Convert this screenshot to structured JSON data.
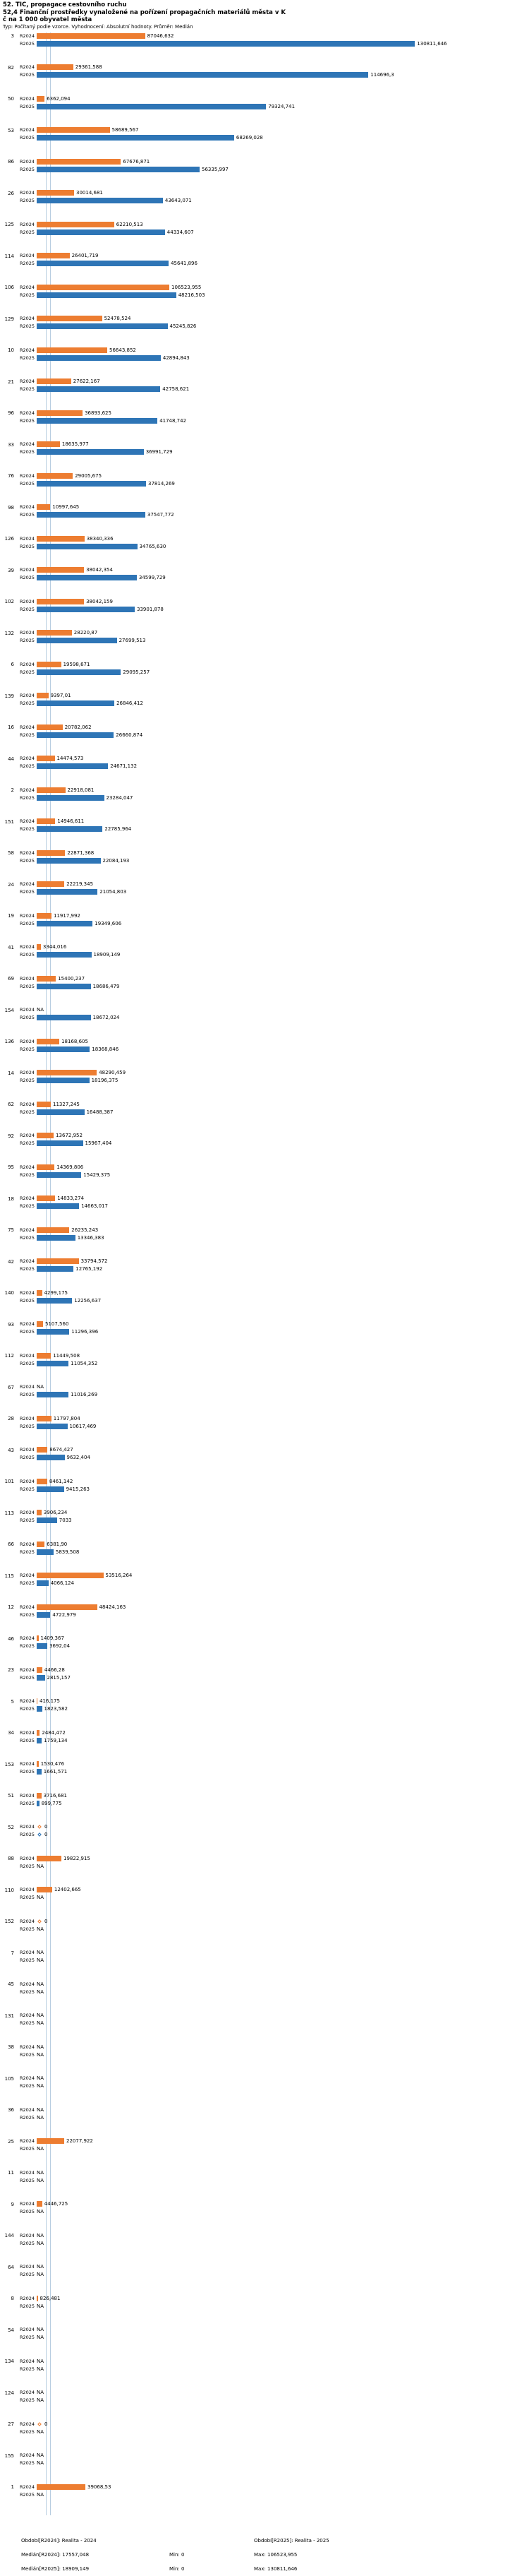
{
  "header": {
    "title": "52. TIC, propagace cestovního ruchu",
    "subtitle1": "52,4 Finanční prostředky vynaložené na pořízení propagačních materiálů města v K",
    "subtitle2": "č na 1 000 obyvatel města",
    "meta": "Typ: Počítaný podle vzorce. Vyhodnocení: Absolutní hodnoty. Průměr: Medián"
  },
  "chart_data": {
    "type": "bar",
    "orientation": "horizontal",
    "title": "52,4 Finanční prostředky vynaložené na pořízení propagačních materiálů města v Kč na 1 000 obyvatel města",
    "series_labels": [
      "R2024",
      "R2025"
    ],
    "colors": {
      "r2024": "#ED7D31",
      "r2025": "#2E75B6"
    },
    "legend": {
      "r2024": "Období[R2024]: Realita - 2024",
      "r2025": "Období[R2025]: Realita - 2025"
    },
    "stats": {
      "median_r2024": "17557,048",
      "min_r2024": "0",
      "max_r2024": "106523,955",
      "median_r2025": "18909,149",
      "min_r2025": "0",
      "max_r2025": "130811,646"
    },
    "value_note": "values are Kč per 1000 inhabitants, Czech decimal comma format, NA = not available",
    "rows": [
      {
        "id": "3",
        "r2024": "87046,632",
        "r2025": "130811,646"
      },
      {
        "id": "82",
        "r2024": "29361,588",
        "r2025": "114696,3"
      },
      {
        "id": "50",
        "r2024": "6362,094",
        "r2025": "79324,741"
      },
      {
        "id": "53",
        "r2024": "58689,567",
        "r2025": "68269,028"
      },
      {
        "id": "86",
        "r2024": "67676,871",
        "r2025": "56335,997"
      },
      {
        "id": "26",
        "r2024": "30014,681",
        "r2025": "43643,071"
      },
      {
        "id": "125",
        "r2024": "62210,513",
        "r2025": "44334,607"
      },
      {
        "id": "114",
        "r2024": "26401,719",
        "r2025": "45641,896"
      },
      {
        "id": "106",
        "r2024": "106523,955",
        "r2025": "48216,503"
      },
      {
        "id": "129",
        "r2024": "52478,524",
        "r2025": "45245,826"
      },
      {
        "id": "10",
        "r2024": "56643,852",
        "r2025": "42894,843"
      },
      {
        "id": "21",
        "r2024": "27622,167",
        "r2025": "42758,621"
      },
      {
        "id": "96",
        "r2024": "36893,625",
        "r2025": "41748,742"
      },
      {
        "id": "33",
        "r2024": "18635,977",
        "r2025": "36991,729"
      },
      {
        "id": "76",
        "r2024": "29005,675",
        "r2025": "37814,269"
      },
      {
        "id": "98",
        "r2024": "10997,645",
        "r2025": "37547,772"
      },
      {
        "id": "126",
        "r2024": "38340,336",
        "r2025": "34765,630"
      },
      {
        "id": "39",
        "r2024": "38042,354",
        "r2025": "34599,729"
      },
      {
        "id": "102",
        "r2024": "38042,159",
        "r2025": "33901,878"
      },
      {
        "id": "132",
        "r2024": "28220,87",
        "r2025": "27699,513"
      },
      {
        "id": "6",
        "r2024": "19598,671",
        "r2025": "29095,257"
      },
      {
        "id": "139",
        "r2024": "9397,01",
        "r2025": "26846,412"
      },
      {
        "id": "16",
        "r2024": "20782,062",
        "r2025": "26660,874"
      },
      {
        "id": "44",
        "r2024": "14474,573",
        "r2025": "24671,132"
      },
      {
        "id": "2",
        "r2024": "22918,081",
        "r2025": "23284,047"
      },
      {
        "id": "151",
        "r2024": "14946,611",
        "r2025": "22785,964"
      },
      {
        "id": "58",
        "r2024": "22871,368",
        "r2025": "22084,193"
      },
      {
        "id": "24",
        "r2024": "22219,345",
        "r2025": "21054,803"
      },
      {
        "id": "19",
        "r2024": "11917,992",
        "r2025": "19349,606"
      },
      {
        "id": "41",
        "r2024": "3344,016",
        "r2025": "18909,149"
      },
      {
        "id": "69",
        "r2024": "15400,237",
        "r2025": "18686,479"
      },
      {
        "id": "154",
        "r2024": "NA",
        "r2025": "18672,024"
      },
      {
        "id": "136",
        "r2024": "18168,605",
        "r2025": "18368,846"
      },
      {
        "id": "14",
        "r2024": "48290,459",
        "r2025": "18196,375"
      },
      {
        "id": "62",
        "r2024": "11327,245",
        "r2025": "16488,387"
      },
      {
        "id": "92",
        "r2024": "13672,952",
        "r2025": "15967,404"
      },
      {
        "id": "95",
        "r2024": "14369,806",
        "r2025": "15429,375"
      },
      {
        "id": "18",
        "r2024": "14833,274",
        "r2025": "14663,017"
      },
      {
        "id": "75",
        "r2024": "26235,243",
        "r2025": "13346,383"
      },
      {
        "id": "42",
        "r2024": "33794,572",
        "r2025": "12765,192"
      },
      {
        "id": "140",
        "r2024": "4299,175",
        "r2025": "12256,637"
      },
      {
        "id": "93",
        "r2024": "5107,560",
        "r2025": "11296,396"
      },
      {
        "id": "112",
        "r2024": "11449,508",
        "r2025": "11054,352"
      },
      {
        "id": "67",
        "r2024": "NA",
        "r2025": "11016,269"
      },
      {
        "id": "28",
        "r2024": "11797,804",
        "r2025": "10617,469"
      },
      {
        "id": "43",
        "r2024": "8674,427",
        "r2025": "9632,404"
      },
      {
        "id": "101",
        "r2024": "8461,142",
        "r2025": "9415,263"
      },
      {
        "id": "113",
        "r2024": "3906,234",
        "r2025": "7033"
      },
      {
        "id": "66",
        "r2024": "6381,90",
        "r2025": "5839,508"
      },
      {
        "id": "115",
        "r2024": "53516,264",
        "r2025": "4066,124"
      },
      {
        "id": "12",
        "r2024": "48424,163",
        "r2025": "4722,979"
      },
      {
        "id": "46",
        "r2024": "1409,367",
        "r2025": "3692,04"
      },
      {
        "id": "23",
        "r2024": "4466,28",
        "r2025": "2815,157"
      },
      {
        "id": "5",
        "r2024": "416,175",
        "r2025": "1823,582"
      },
      {
        "id": "34",
        "r2024": "2484,472",
        "r2025": "1759,134"
      },
      {
        "id": "153",
        "r2024": "1530,476",
        "r2025": "1661,571"
      },
      {
        "id": "51",
        "r2024": "3716,681",
        "r2025": "899,775"
      },
      {
        "id": "52",
        "r2024": "0",
        "r2025": "0"
      },
      {
        "id": "88",
        "r2024": "19822,915",
        "r2025": "NA"
      },
      {
        "id": "110",
        "r2024": "12402,665",
        "r2025": "NA"
      },
      {
        "id": "152",
        "r2024": "0",
        "r2025": "NA"
      },
      {
        "id": "7",
        "r2024": "NA",
        "r2025": "NA"
      },
      {
        "id": "45",
        "r2024": "NA",
        "r2025": "NA"
      },
      {
        "id": "131",
        "r2024": "NA",
        "r2025": "NA"
      },
      {
        "id": "38",
        "r2024": "NA",
        "r2025": "NA"
      },
      {
        "id": "105",
        "r2024": "NA",
        "r2025": "NA"
      },
      {
        "id": "36",
        "r2024": "NA",
        "r2025": "NA"
      },
      {
        "id": "25",
        "r2024": "22077,922",
        "r2025": "NA"
      },
      {
        "id": "11",
        "r2024": "NA",
        "r2025": "NA"
      },
      {
        "id": "9",
        "r2024": "4446,725",
        "r2025": "NA"
      },
      {
        "id": "144",
        "r2024": "NA",
        "r2025": "NA"
      },
      {
        "id": "64",
        "r2024": "NA",
        "r2025": "NA"
      },
      {
        "id": "8",
        "r2024": "826,481",
        "r2025": "NA"
      },
      {
        "id": "54",
        "r2024": "NA",
        "r2025": "NA"
      },
      {
        "id": "134",
        "r2024": "NA",
        "r2025": "NA"
      },
      {
        "id": "124",
        "r2024": "NA",
        "r2025": "NA"
      },
      {
        "id": "27",
        "r2024": "0",
        "r2025": "NA"
      },
      {
        "id": "155",
        "r2024": "NA",
        "r2025": "NA"
      },
      {
        "id": "1",
        "r2024": "39068,53",
        "r2025": "NA"
      }
    ]
  },
  "footer": {
    "period_2024": "Období[R2024]: Realita - 2024",
    "period_2025": "Období[R2025]: Realita - 2025",
    "median_2024": "Medián[R2024]: 17557,048",
    "min_2024": "Min: 0",
    "max_2024": "Max: 106523,955",
    "median_2025": "Medián[R2025]: 18909,149",
    "min_2025": "Min: 0",
    "max_2025": "Max: 130811,646"
  }
}
